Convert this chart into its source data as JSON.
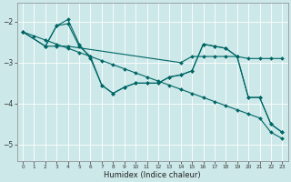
{
  "xlabel": "Humidex (Indice chaleur)",
  "bg_color": "#cce8e8",
  "grid_color": "#ffffff",
  "line_color": "#006666",
  "xlim": [
    -0.5,
    23.5
  ],
  "ylim": [
    -5.4,
    -1.55
  ],
  "yticks": [
    -5,
    -4,
    -3,
    -2
  ],
  "xticks": [
    0,
    1,
    2,
    3,
    4,
    5,
    6,
    7,
    8,
    9,
    10,
    11,
    12,
    13,
    14,
    15,
    16,
    17,
    18,
    19,
    20,
    21,
    22,
    23
  ],
  "series": [
    {
      "x": [
        0,
        1,
        2,
        3,
        4,
        5,
        6,
        7,
        8,
        9,
        10,
        11,
        12,
        13,
        14,
        15,
        16,
        17,
        18,
        19,
        20,
        21,
        22,
        23
      ],
      "y": [
        -2.25,
        -2.35,
        -2.45,
        -2.55,
        -2.65,
        -2.75,
        -2.85,
        -2.95,
        -3.05,
        -3.15,
        -3.25,
        -3.35,
        -3.45,
        -3.55,
        -3.65,
        -3.75,
        -3.85,
        -3.95,
        -4.05,
        -4.15,
        -4.25,
        -4.35,
        -4.7,
        -4.85
      ]
    },
    {
      "x": [
        0,
        2,
        3,
        4,
        5,
        6,
        7,
        8,
        9,
        10,
        11,
        12,
        13,
        14,
        15,
        16,
        17,
        18,
        19,
        20,
        21,
        22,
        23
      ],
      "y": [
        -2.25,
        -2.6,
        -2.1,
        -1.95,
        -2.55,
        -2.9,
        -3.55,
        -3.75,
        -3.6,
        -3.5,
        -3.5,
        -3.5,
        -3.35,
        -3.3,
        -3.2,
        -2.55,
        -2.6,
        -2.65,
        -2.85,
        -3.85,
        -3.85,
        -4.5,
        -4.7
      ]
    },
    {
      "x": [
        0,
        2,
        3,
        4,
        14,
        15,
        16,
        17,
        18,
        19,
        20,
        21,
        22,
        23
      ],
      "y": [
        -2.25,
        -2.6,
        -2.6,
        -2.6,
        -3.0,
        -2.85,
        -2.85,
        -2.85,
        -2.85,
        -2.85,
        -2.9,
        -2.9,
        -2.9,
        -2.9
      ]
    },
    {
      "x": [
        2,
        3,
        4,
        5,
        6,
        7,
        8,
        9,
        10,
        11,
        12,
        13,
        14,
        15,
        16,
        17,
        18,
        19,
        20,
        21,
        22,
        23
      ],
      "y": [
        -2.6,
        -2.1,
        -2.05,
        -2.6,
        -2.85,
        -3.55,
        -3.75,
        -3.6,
        -3.5,
        -3.5,
        -3.5,
        -3.35,
        -3.3,
        -3.2,
        -2.55,
        -2.6,
        -2.65,
        -2.85,
        -3.85,
        -3.85,
        -4.5,
        -4.7
      ]
    }
  ]
}
